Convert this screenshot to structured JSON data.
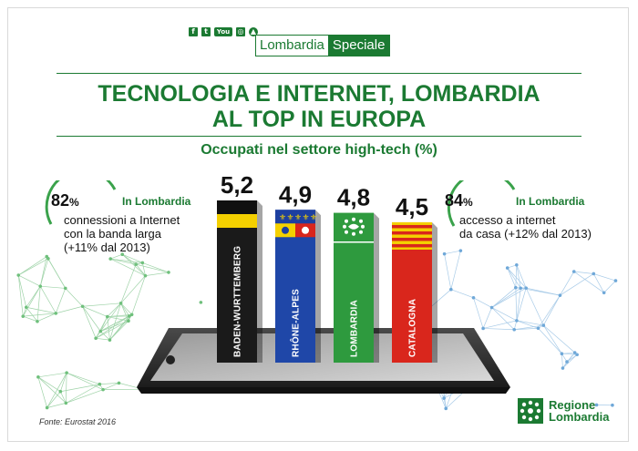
{
  "header": {
    "socials": [
      {
        "name": "facebook-icon",
        "glyph": "f"
      },
      {
        "name": "twitter-icon",
        "glyph": "t"
      },
      {
        "name": "youtube-icon",
        "glyph": "You"
      },
      {
        "name": "instagram-icon",
        "glyph": "◎"
      },
      {
        "name": "app-icon",
        "glyph": "▲"
      }
    ],
    "brand_part1": "Lombardia",
    "brand_part2": "Speciale"
  },
  "title_line1": "TECNOLOGIA E INTERNET, LOMBARDIA",
  "title_line2": "AL TOP IN EUROPA",
  "left_stat": {
    "value": "82",
    "unit": "%",
    "label": "In Lombardia",
    "line1": "connessioni a Internet",
    "line2": "con la banda larga",
    "line3": "(+11% dal 2013)"
  },
  "right_stat": {
    "value": "84",
    "unit": "%",
    "label": "In Lombardia",
    "line1": "accesso a internet",
    "line2": "da casa",
    "line2b": " (+12% dal 2013)"
  },
  "chart_data": {
    "type": "bar",
    "title": "Occupati nel settore high-tech (%)",
    "categories": [
      "BADEN-WURTTEMBERG",
      "RHÔNE-ALPES",
      "LOMBARDIA",
      "CATALOGNA"
    ],
    "values": [
      5.2,
      4.9,
      4.8,
      4.5
    ],
    "value_labels": [
      "5,2",
      "4,9",
      "4,8",
      "4,5"
    ],
    "bar_colors": [
      "#1a1a1a",
      "#1f47a8",
      "#2e9a3e",
      "#d9261c"
    ],
    "flag_styles": [
      "baden",
      "rhone",
      "lombardia",
      "catalogna"
    ],
    "ylim": [
      0,
      5.2
    ]
  },
  "footer": {
    "source": "Fonte: Eurostat 2016",
    "logo_line1": "Regione",
    "logo_line2": "Lombardia"
  }
}
